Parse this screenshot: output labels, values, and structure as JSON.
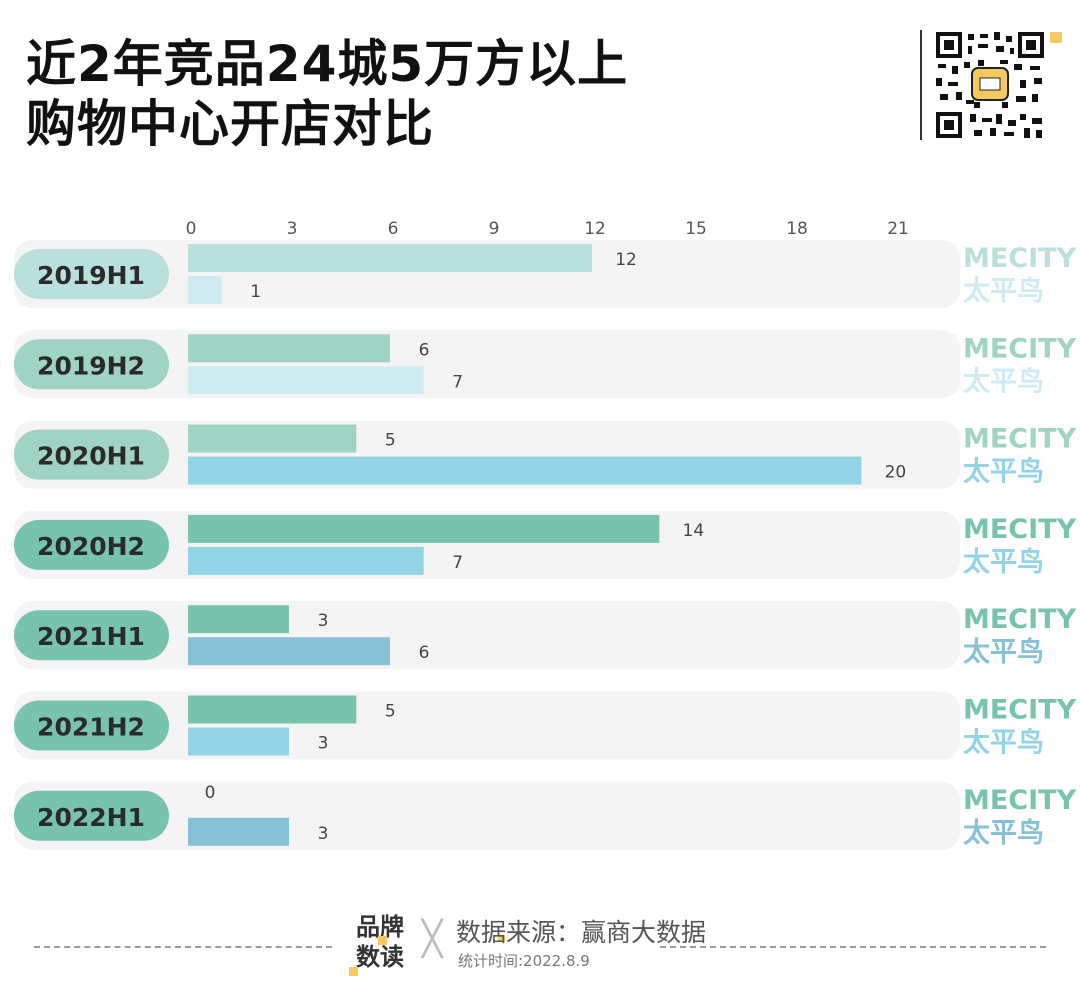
{
  "title": {
    "line1": "近2年竞品24城5万方以上",
    "line2": "购物中心开店对比"
  },
  "colors": {
    "row_bg": "#f4f4f4",
    "mecity_label": "#6dbda6",
    "taipingniao_label": "#8fcfe0",
    "value_label": "#444444",
    "pill_text": "#2a2a2a",
    "accent": "#f4c95d"
  },
  "chart_data": {
    "type": "bar",
    "orientation": "horizontal",
    "title": "近2年竞品24城5万方以上购物中心开店对比",
    "xlim": [
      0,
      21
    ],
    "xticks": [
      0,
      3,
      6,
      9,
      12,
      15,
      18,
      21
    ],
    "categories": [
      "2019H1",
      "2019H2",
      "2020H1",
      "2020H2",
      "2021H1",
      "2021H2",
      "2022H1"
    ],
    "series": [
      {
        "name": "MECITY",
        "values": [
          12,
          6,
          5,
          14,
          3,
          5,
          0
        ],
        "colors": [
          "#b9e0dc",
          "#9fd3c4",
          "#9fd3c4",
          "#78c3ad",
          "#78c3ad",
          "#78c3ad",
          "#78c3ad"
        ]
      },
      {
        "name": "太平鸟",
        "values": [
          1,
          7,
          20,
          7,
          6,
          3,
          3
        ],
        "colors": [
          "#cfebf2",
          "#cfebf2",
          "#93d3e6",
          "#93d3e6",
          "#86c1d6",
          "#93d3e6",
          "#86c1d6"
        ]
      }
    ],
    "pill_colors": [
      "#b9e0dc",
      "#9fd3c4",
      "#9fd3c4",
      "#78c3ad",
      "#78c3ad",
      "#78c3ad",
      "#78c3ad"
    ],
    "legend_colors": [
      [
        "#b9e0dc",
        "#cfebf2"
      ],
      [
        "#9fd3c4",
        "#cfebf2"
      ],
      [
        "#9fd3c4",
        "#93d3e6"
      ],
      [
        "#78c3ad",
        "#93d3e6"
      ],
      [
        "#78c3ad",
        "#86c1d6"
      ],
      [
        "#78c3ad",
        "#93d3e6"
      ],
      [
        "#78c3ad",
        "#86c1d6"
      ]
    ]
  },
  "footer": {
    "brand_line1": "品牌",
    "brand_line2": "数读",
    "separator": "╳",
    "source": "数据来源：赢商大数据",
    "date": "统计时间:2022.8.9"
  }
}
